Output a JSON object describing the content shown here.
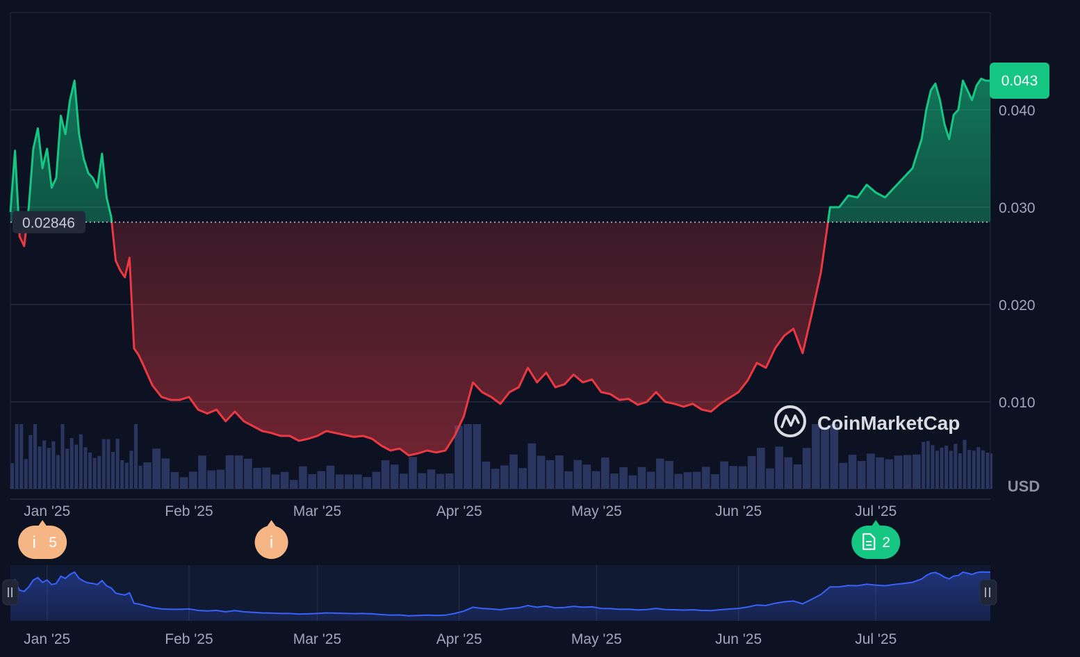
{
  "chart_data": {
    "type": "area",
    "currency_label": "USD",
    "baseline_value": 0.02846,
    "baseline_label": "0.02846",
    "current_price": 0.043,
    "current_price_label": "0.043",
    "y_ticks": [
      0.01,
      0.02,
      0.03,
      0.04
    ],
    "y_tick_labels": [
      "0.010",
      "0.020",
      "0.030",
      "0.040"
    ],
    "ylim": [
      0.0,
      0.05
    ],
    "xlim": [
      "2024-12-24",
      "2025-07-26"
    ],
    "x_ticks": [
      "2025-01-01",
      "2025-02-01",
      "2025-03-01",
      "2025-04-01",
      "2025-05-01",
      "2025-06-01",
      "2025-07-01"
    ],
    "x_tick_labels": [
      "Jan '25",
      "Feb '25",
      "Mar '25",
      "Apr '25",
      "May '25",
      "Jun '25",
      "Jul '25"
    ],
    "colors": {
      "up": "#16c784",
      "down": "#ea3943",
      "navigator": "#3861fb",
      "volume": "#2a3560",
      "grid": "#232b3d",
      "text": "#a1a7bb"
    },
    "series": [
      {
        "x": [
          "2024-12-24",
          "2024-12-25",
          "2024-12-26",
          "2024-12-27",
          "2024-12-28",
          "2024-12-29",
          "2024-12-30",
          "2024-12-31",
          "2025-01-01",
          "2025-01-02",
          "2025-01-03",
          "2025-01-04",
          "2025-01-05",
          "2025-01-06",
          "2025-01-07",
          "2025-01-08",
          "2025-01-09",
          "2025-01-10",
          "2025-01-11",
          "2025-01-12",
          "2025-01-13",
          "2025-01-14",
          "2025-01-15",
          "2025-01-16",
          "2025-01-17",
          "2025-01-18",
          "2025-01-19",
          "2025-01-20",
          "2025-01-21",
          "2025-01-22",
          "2025-01-24",
          "2025-01-26",
          "2025-01-28",
          "2025-01-30",
          "2025-02-01",
          "2025-02-03",
          "2025-02-05",
          "2025-02-07",
          "2025-02-09",
          "2025-02-11",
          "2025-02-13",
          "2025-02-15",
          "2025-02-17",
          "2025-02-19",
          "2025-02-21",
          "2025-02-23",
          "2025-02-25",
          "2025-02-27",
          "2025-03-01",
          "2025-03-03",
          "2025-03-05",
          "2025-03-07",
          "2025-03-09",
          "2025-03-11",
          "2025-03-13",
          "2025-03-15",
          "2025-03-17",
          "2025-03-19",
          "2025-03-21",
          "2025-03-23",
          "2025-03-25",
          "2025-03-27",
          "2025-03-29",
          "2025-03-31",
          "2025-04-02",
          "2025-04-04",
          "2025-04-06",
          "2025-04-08",
          "2025-04-10",
          "2025-04-12",
          "2025-04-14",
          "2025-04-16",
          "2025-04-18",
          "2025-04-20",
          "2025-04-22",
          "2025-04-24",
          "2025-04-26",
          "2025-04-28",
          "2025-04-30",
          "2025-05-02",
          "2025-05-04",
          "2025-05-06",
          "2025-05-08",
          "2025-05-10",
          "2025-05-12",
          "2025-05-14",
          "2025-05-16",
          "2025-05-18",
          "2025-05-20",
          "2025-05-22",
          "2025-05-24",
          "2025-05-26",
          "2025-05-28",
          "2025-05-30",
          "2025-06-01",
          "2025-06-03",
          "2025-06-05",
          "2025-06-07",
          "2025-06-09",
          "2025-06-11",
          "2025-06-13",
          "2025-06-15",
          "2025-06-17",
          "2025-06-19",
          "2025-06-21",
          "2025-06-23",
          "2025-06-25",
          "2025-06-27",
          "2025-06-29",
          "2025-07-01",
          "2025-07-03",
          "2025-07-05",
          "2025-07-07",
          "2025-07-09",
          "2025-07-11",
          "2025-07-12",
          "2025-07-13",
          "2025-07-14",
          "2025-07-15",
          "2025-07-16",
          "2025-07-17",
          "2025-07-18",
          "2025-07-19",
          "2025-07-20",
          "2025-07-21",
          "2025-07-22",
          "2025-07-23",
          "2025-07-24",
          "2025-07-25",
          "2025-07-26"
        ],
        "values": [
          0.0295,
          0.0358,
          0.027,
          0.026,
          0.03,
          0.036,
          0.0381,
          0.034,
          0.036,
          0.032,
          0.033,
          0.0394,
          0.0375,
          0.041,
          0.043,
          0.0375,
          0.035,
          0.0335,
          0.033,
          0.032,
          0.0355,
          0.031,
          0.029,
          0.0245,
          0.0235,
          0.0228,
          0.0248,
          0.0155,
          0.0148,
          0.0138,
          0.0117,
          0.0105,
          0.0102,
          0.0102,
          0.0105,
          0.0092,
          0.0088,
          0.0092,
          0.008,
          0.009,
          0.008,
          0.0075,
          0.007,
          0.0068,
          0.0065,
          0.0065,
          0.006,
          0.0062,
          0.0065,
          0.007,
          0.0068,
          0.0066,
          0.0064,
          0.0065,
          0.0062,
          0.0055,
          0.005,
          0.0052,
          0.0045,
          0.0047,
          0.005,
          0.0048,
          0.005,
          0.0065,
          0.0085,
          0.012,
          0.011,
          0.0105,
          0.0098,
          0.011,
          0.0115,
          0.0135,
          0.012,
          0.013,
          0.0115,
          0.0118,
          0.0128,
          0.012,
          0.0123,
          0.011,
          0.0108,
          0.0102,
          0.0103,
          0.0097,
          0.01,
          0.011,
          0.01,
          0.0098,
          0.0095,
          0.0098,
          0.0092,
          0.009,
          0.0098,
          0.0104,
          0.011,
          0.0122,
          0.014,
          0.0135,
          0.0155,
          0.0168,
          0.0175,
          0.015,
          0.019,
          0.0233,
          0.03,
          0.03,
          0.0312,
          0.031,
          0.0323,
          0.0315,
          0.031,
          0.032,
          0.033,
          0.034,
          0.037,
          0.04,
          0.042,
          0.0427,
          0.041,
          0.0385,
          0.037,
          0.0395,
          0.04,
          0.043,
          0.042,
          0.041,
          0.0425,
          0.0432,
          0.043,
          0.043
        ]
      }
    ],
    "volume_note": "",
    "events": [
      {
        "kind": "info",
        "label": "i",
        "count": "5",
        "date": "2024-12-31"
      },
      {
        "kind": "info",
        "label": "i",
        "count": "",
        "date": "2025-02-19"
      },
      {
        "kind": "doc",
        "label": "",
        "count": "2",
        "date": "2025-07-01"
      }
    ]
  },
  "watermark": "CoinMarketCap"
}
